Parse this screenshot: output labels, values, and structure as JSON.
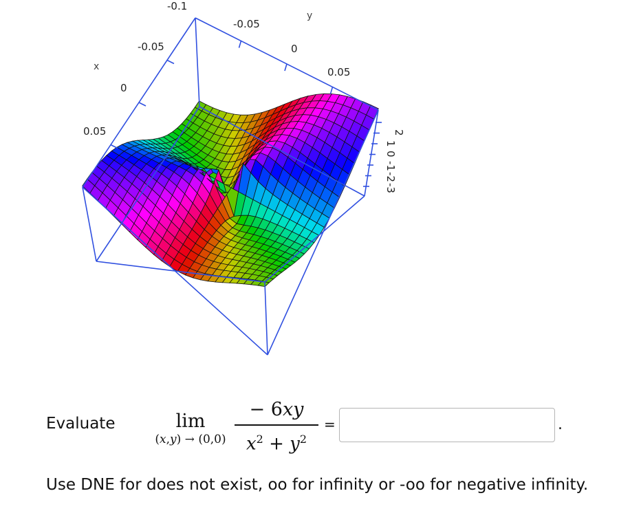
{
  "plot": {
    "x_axis": {
      "name": "x",
      "ticks": [
        "-0.1",
        "-0.05",
        "0",
        "0.05"
      ]
    },
    "y_axis": {
      "name": "y",
      "ticks": [
        "-0.05",
        "0",
        "0.05"
      ]
    },
    "z_axis": {
      "ticks": [
        "2",
        "1",
        "0",
        "-1",
        "-2",
        "-3"
      ]
    },
    "frame_color": "#3050e0",
    "surface": "z = -6xy / (x^2 + y^2)"
  },
  "problem": {
    "prompt": "Evaluate",
    "lim_word": "lim",
    "lim_sub_x": "x",
    "lim_sub_y": "y",
    "lim_sub_point": "(0,0)",
    "numerator": "− 6",
    "var_x": "x",
    "var_y": "y",
    "sq": "2",
    "plus": "+",
    "equals": "=",
    "answer_value": "",
    "period": "."
  },
  "hint": "Use DNE for does not exist, oo for infinity or -oo for negative infinity."
}
